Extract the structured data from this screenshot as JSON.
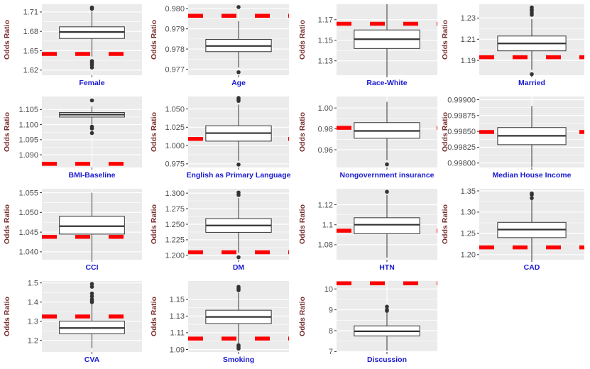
{
  "chart_data": [
    {
      "type": "boxplot",
      "xlabel": "Female",
      "ylabel": "Odds Ratio",
      "yticks": [
        1.62,
        1.65,
        1.68,
        1.71
      ],
      "ylim": [
        1.612,
        1.722
      ],
      "box": {
        "q1": 1.669,
        "median": 1.679,
        "q3": 1.687,
        "whisker_low": 1.641,
        "whisker_high": 1.711
      },
      "outliers": [
        1.717,
        1.715,
        1.634,
        1.631,
        1.628,
        1.624
      ],
      "reference": 1.645
    },
    {
      "type": "boxplot",
      "xlabel": "Age",
      "ylabel": "Odds Ratio",
      "yticks": [
        0.977,
        0.978,
        0.979,
        0.98
      ],
      "yticklabels": [
        "0.977",
        "0.978",
        "0.979",
        "0.980"
      ],
      "ylim": [
        0.9767,
        0.98022
      ],
      "box": {
        "q1": 0.97787,
        "median": 0.97815,
        "q3": 0.97848,
        "whisker_low": 0.97708,
        "whisker_high": 0.97938
      },
      "outliers": [
        0.98008,
        0.97685
      ],
      "reference": 0.97965
    },
    {
      "type": "boxplot",
      "xlabel": "Race-White",
      "ylabel": "Odds Ratio",
      "yticks": [
        1.13,
        1.15,
        1.17
      ],
      "ylim": [
        1.116,
        1.185
      ],
      "box": {
        "q1": 1.142,
        "median": 1.151,
        "q3": 1.16,
        "whisker_low": 1.116,
        "whisker_high": 1.185
      },
      "outliers": [],
      "reference": 1.166
    },
    {
      "type": "boxplot",
      "xlabel": "Married",
      "ylabel": "Odds Ratio",
      "yticks": [
        1.19,
        1.21,
        1.23
      ],
      "ylim": [
        1.176,
        1.243
      ],
      "box": {
        "q1": 1.199,
        "median": 1.206,
        "q3": 1.213,
        "whisker_low": 1.181,
        "whisker_high": 1.229
      },
      "outliers": [
        1.24,
        1.238,
        1.237,
        1.235,
        1.233,
        1.177
      ],
      "reference": 1.193
    },
    {
      "type": "boxplot",
      "xlabel": "BMI-Baseline",
      "ylabel": "Odds Ratio",
      "yticks": [
        1.09,
        1.095,
        1.1,
        1.105
      ],
      "yticklabels": [
        "1.090",
        "1.095",
        "1.100",
        "1.105"
      ],
      "ylim": [
        1.0858,
        1.1093
      ],
      "box": {
        "q1": 1.1025,
        "median": 1.1033,
        "q3": 1.104,
        "whisker_low": 1.1,
        "whisker_high": 1.106
      },
      "outliers": [
        1.108,
        1.0993,
        1.0987,
        1.0972
      ],
      "reference": 1.087
    },
    {
      "type": "boxplot",
      "xlabel": "English as Primary Language",
      "ylabel": "Odds Ratio",
      "yticks": [
        0.975,
        1.0,
        1.025,
        1.05
      ],
      "yticklabels": [
        "0.975",
        "1.000",
        "1.025",
        "1.050"
      ],
      "ylim": [
        0.97,
        1.067
      ],
      "box": {
        "q1": 1.006,
        "median": 1.017,
        "q3": 1.027,
        "whisker_low": 0.979,
        "whisker_high": 1.056
      },
      "outliers": [
        1.065,
        1.063,
        1.061,
        0.974
      ],
      "reference": 1.009
    },
    {
      "type": "boxplot",
      "xlabel": "Nongovernment insurance",
      "ylabel": "Odds Ratio",
      "yticks": [
        0.96,
        0.98,
        1.0
      ],
      "yticklabels": [
        "0.96",
        "0.98",
        "1.00"
      ],
      "ylim": [
        0.943,
        1.011
      ],
      "box": {
        "q1": 0.971,
        "median": 0.978,
        "q3": 0.986,
        "whisker_low": 0.95,
        "whisker_high": 1.006
      },
      "outliers": [
        0.946
      ],
      "reference": 0.981
    },
    {
      "type": "boxplot",
      "xlabel": "Median House Income",
      "ylabel": "Odds Ratio",
      "yticks": [
        0.998,
        0.99825,
        0.9985,
        0.99875,
        0.999
      ],
      "yticklabels": [
        "0.99800",
        "0.99825",
        "0.99850",
        "0.99875",
        "0.99900"
      ],
      "ylim": [
        0.99793,
        0.99905
      ],
      "box": {
        "q1": 0.99829,
        "median": 0.99843,
        "q3": 0.99856,
        "whisker_low": 0.99794,
        "whisker_high": 0.9989
      },
      "outliers": [],
      "reference": 0.99849
    },
    {
      "type": "boxplot",
      "xlabel": "CCI",
      "ylabel": "Odds Ratio",
      "yticks": [
        1.04,
        1.045,
        1.05,
        1.055
      ],
      "yticklabels": [
        "1.040",
        "1.045",
        "1.050",
        "1.055"
      ],
      "ylim": [
        1.038,
        1.056
      ],
      "box": {
        "q1": 1.0445,
        "median": 1.0465,
        "q3": 1.049,
        "whisker_low": 1.038,
        "whisker_high": 1.055
      },
      "outliers": [],
      "reference": 1.0438
    },
    {
      "type": "boxplot",
      "xlabel": "DM",
      "ylabel": "Odds Ratio",
      "yticks": [
        1.2,
        1.225,
        1.25,
        1.275,
        1.3
      ],
      "yticklabels": [
        "1.200",
        "1.225",
        "1.250",
        "1.275",
        "1.300"
      ],
      "ylim": [
        1.193,
        1.307
      ],
      "box": {
        "q1": 1.237,
        "median": 1.248,
        "q3": 1.259,
        "whisker_low": 1.204,
        "whisker_high": 1.292
      },
      "outliers": [
        1.301,
        1.297,
        1.197
      ],
      "reference": 1.205
    },
    {
      "type": "boxplot",
      "xlabel": "HTN",
      "ylabel": "Odds Ratio",
      "yticks": [
        1.08,
        1.1,
        1.12
      ],
      "ylim": [
        1.065,
        1.136
      ],
      "box": {
        "q1": 1.091,
        "median": 1.1,
        "q3": 1.107,
        "whisker_low": 1.067,
        "whisker_high": 1.13
      },
      "outliers": [
        1.133
      ],
      "reference": 1.094
    },
    {
      "type": "boxplot",
      "xlabel": "CAD",
      "ylabel": "Odds Ratio",
      "yticks": [
        1.2,
        1.25,
        1.3,
        1.35
      ],
      "yticklabels": [
        "1.20",
        "1.25",
        "1.30",
        "1.35"
      ],
      "ylim": [
        1.188,
        1.355
      ],
      "box": {
        "q1": 1.24,
        "median": 1.259,
        "q3": 1.276,
        "whisker_low": 1.187,
        "whisker_high": 1.329
      },
      "outliers": [
        1.344,
        1.341,
        1.333
      ],
      "reference": 1.217
    },
    {
      "type": "boxplot",
      "xlabel": "CVA",
      "ylabel": "Odds Ratio",
      "yticks": [
        1.2,
        1.3,
        1.4,
        1.5
      ],
      "ylim": [
        1.14,
        1.51
      ],
      "box": {
        "q1": 1.235,
        "median": 1.265,
        "q3": 1.301,
        "whisker_low": 1.16,
        "whisker_high": 1.39
      },
      "outliers": [
        1.495,
        1.48,
        1.445,
        1.43,
        1.415,
        1.405,
        1.4
      ],
      "reference": 1.325
    },
    {
      "type": "boxplot",
      "xlabel": "Smoking",
      "ylabel": "Odds Ratio",
      "yticks": [
        1.09,
        1.11,
        1.13,
        1.15
      ],
      "ylim": [
        1.087,
        1.172
      ],
      "box": {
        "q1": 1.121,
        "median": 1.129,
        "q3": 1.137,
        "whisker_low": 1.096,
        "whisker_high": 1.158
      },
      "outliers": [
        1.165,
        1.163,
        1.161,
        1.095,
        1.093,
        1.091
      ],
      "reference": 1.103
    },
    {
      "type": "boxplot",
      "xlabel": "Discussion",
      "ylabel": "Odds Ratio",
      "yticks": [
        7,
        8,
        9,
        10
      ],
      "ylim": [
        6.98,
        10.38
      ],
      "box": {
        "q1": 7.75,
        "median": 7.97,
        "q3": 8.23,
        "whisker_low": 7.05,
        "whisker_high": 8.9
      },
      "outliers": [
        9.15,
        9.0,
        8.95
      ],
      "reference": 10.27
    }
  ],
  "colors": {
    "panel": "#ebebeb",
    "grid": "#ffffff",
    "reference": "#ff0000",
    "xlabel": "#1a1ad0",
    "ylabel": "#7a2f2f",
    "tick": "#4d4d4d",
    "box": "#333333"
  }
}
